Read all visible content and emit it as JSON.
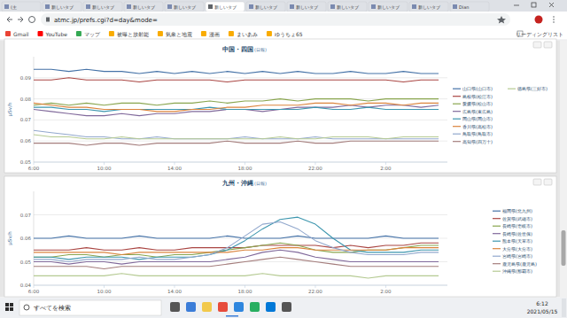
{
  "browser": {
    "tabs": [
      "(主",
      "新しいタブ",
      "新しいタブ",
      "新しいタブ",
      "新しいタブ",
      "新しいタブ",
      "新しいタブ",
      "新しいタブ",
      "新しいタブ",
      "新しいタブ",
      "新しいタブ",
      "Dian"
    ],
    "url": "atmc.jp/prefs.cgi?d=day&mode=",
    "bookmarks": [
      "Gmail",
      "YouTube",
      "マップ",
      "被曝と放射能",
      "気象と地震",
      "漫画",
      "まいあみ",
      "ゆうちょ65"
    ],
    "reading_list": "リーディングリスト"
  },
  "chart_data": [
    {
      "type": "line",
      "title": "中国・四国",
      "subtitle": "(日報)",
      "ylabel": "μSv/h",
      "grid": true,
      "legend": "right",
      "x": [
        6,
        7,
        8,
        9,
        10,
        11,
        12,
        13,
        14,
        15,
        16,
        17,
        18,
        19,
        20,
        21,
        22,
        23,
        24,
        25,
        26,
        27,
        28,
        29
      ],
      "xlim": [
        6,
        29.5
      ],
      "xticks": [
        {
          "value": 6,
          "label": "6:00"
        },
        {
          "value": 10,
          "label": "10:00"
        },
        {
          "value": 14,
          "label": "14:00"
        },
        {
          "value": 18,
          "label": "18:00"
        },
        {
          "value": 22,
          "label": "22:00"
        },
        {
          "value": 26,
          "label": "2:00"
        }
      ],
      "ylim": [
        0.05,
        0.1
      ],
      "yticks": [
        0.05,
        0.06,
        0.07,
        0.08,
        0.09
      ],
      "series": [
        {
          "name": "山口県(山口市)",
          "color": "#4572a7",
          "values": [
            0.094,
            0.094,
            0.093,
            0.094,
            0.093,
            0.093,
            0.092,
            0.093,
            0.092,
            0.093,
            0.092,
            0.093,
            0.092,
            0.093,
            0.092,
            0.093,
            0.092,
            0.092,
            0.093,
            0.092,
            0.092,
            0.093,
            0.092,
            0.092
          ]
        },
        {
          "name": "島根県(松江市)",
          "color": "#aa4643",
          "values": [
            0.089,
            0.089,
            0.09,
            0.089,
            0.089,
            0.089,
            0.088,
            0.089,
            0.089,
            0.089,
            0.089,
            0.088,
            0.089,
            0.089,
            0.089,
            0.089,
            0.089,
            0.089,
            0.089,
            0.089,
            0.089,
            0.088,
            0.089,
            0.089
          ]
        },
        {
          "name": "愛媛県(松山市)",
          "color": "#89a54e",
          "values": [
            0.077,
            0.078,
            0.077,
            0.078,
            0.077,
            0.078,
            0.078,
            0.077,
            0.078,
            0.078,
            0.079,
            0.078,
            0.079,
            0.079,
            0.08,
            0.079,
            0.08,
            0.08,
            0.08,
            0.079,
            0.08,
            0.08,
            0.08,
            0.08
          ]
        },
        {
          "name": "広島県(東広島)",
          "color": "#80699b",
          "values": [
            0.075,
            0.074,
            0.073,
            0.072,
            0.072,
            0.073,
            0.072,
            0.073,
            0.073,
            0.074,
            0.074,
            0.075,
            0.075,
            0.074,
            0.075,
            0.076,
            0.076,
            0.076,
            0.077,
            0.076,
            0.077,
            0.077,
            0.076,
            0.077
          ]
        },
        {
          "name": "岡山県(岡山市)",
          "color": "#3d96ae",
          "values": [
            0.076,
            0.076,
            0.075,
            0.075,
            0.074,
            0.075,
            0.075,
            0.075,
            0.075,
            0.075,
            0.076,
            0.075,
            0.075,
            0.075,
            0.075,
            0.075,
            0.076,
            0.075,
            0.075,
            0.076,
            0.075,
            0.075,
            0.075,
            0.075
          ]
        },
        {
          "name": "香川県(高松市)",
          "color": "#db843d",
          "values": [
            0.078,
            0.077,
            0.076,
            0.076,
            0.075,
            0.075,
            0.075,
            0.074,
            0.074,
            0.075,
            0.075,
            0.076,
            0.076,
            0.077,
            0.077,
            0.077,
            0.078,
            0.078,
            0.077,
            0.078,
            0.078,
            0.077,
            0.078,
            0.078
          ]
        },
        {
          "name": "鳥取県(鳥取市)",
          "color": "#92a8cd",
          "values": [
            0.065,
            0.064,
            0.063,
            0.062,
            0.062,
            0.061,
            0.061,
            0.062,
            0.061,
            0.061,
            0.061,
            0.061,
            0.062,
            0.061,
            0.061,
            0.061,
            0.062,
            0.061,
            0.061,
            0.061,
            0.061,
            0.061,
            0.061,
            0.061
          ]
        },
        {
          "name": "高知県(四万十)",
          "color": "#a47d7c",
          "values": [
            0.059,
            0.059,
            0.059,
            0.058,
            0.059,
            0.059,
            0.058,
            0.059,
            0.059,
            0.059,
            0.059,
            0.06,
            0.059,
            0.059,
            0.059,
            0.06,
            0.059,
            0.059,
            0.06,
            0.06,
            0.06,
            0.06,
            0.06,
            0.06
          ]
        },
        {
          "name": "徳島県(三好市)",
          "color": "#b5ca92",
          "values": [
            0.063,
            0.062,
            0.062,
            0.061,
            0.061,
            0.062,
            0.061,
            0.061,
            0.061,
            0.061,
            0.061,
            0.061,
            0.061,
            0.061,
            0.062,
            0.061,
            0.061,
            0.062,
            0.062,
            0.062,
            0.061,
            0.062,
            0.062,
            0.062
          ]
        }
      ]
    },
    {
      "type": "line",
      "title": "九州・沖縄",
      "subtitle": "(日報)",
      "ylabel": "μSv/h",
      "grid": true,
      "legend": "right",
      "x": [
        6,
        7,
        8,
        9,
        10,
        11,
        12,
        13,
        14,
        15,
        16,
        17,
        18,
        19,
        20,
        21,
        22,
        23,
        24,
        25,
        26,
        27,
        28,
        29
      ],
      "xlim": [
        6,
        29.5
      ],
      "xticks": [
        {
          "value": 6,
          "label": "6:00"
        },
        {
          "value": 10,
          "label": "10:00"
        },
        {
          "value": 14,
          "label": "14:00"
        },
        {
          "value": 18,
          "label": "18:00"
        },
        {
          "value": 22,
          "label": "22:00"
        },
        {
          "value": 26,
          "label": "2:00"
        }
      ],
      "ylim": [
        0.04,
        0.08
      ],
      "yticks": [
        0.04,
        0.05,
        0.06,
        0.07
      ],
      "series": [
        {
          "name": "福岡県(北九州)",
          "color": "#4572a7",
          "values": [
            0.06,
            0.06,
            0.061,
            0.06,
            0.06,
            0.06,
            0.061,
            0.06,
            0.06,
            0.06,
            0.06,
            0.061,
            0.06,
            0.06,
            0.06,
            0.061,
            0.06,
            0.06,
            0.06,
            0.06,
            0.061,
            0.06,
            0.06,
            0.06
          ]
        },
        {
          "name": "佐賀県(武雄市)",
          "color": "#aa4643",
          "values": [
            0.055,
            0.055,
            0.055,
            0.056,
            0.055,
            0.055,
            0.056,
            0.055,
            0.055,
            0.056,
            0.056,
            0.056,
            0.056,
            0.057,
            0.057,
            0.057,
            0.057,
            0.056,
            0.057,
            0.056,
            0.057,
            0.057,
            0.058,
            0.058
          ]
        },
        {
          "name": "長崎県(壱岐市)",
          "color": "#89a54e",
          "values": [
            0.052,
            0.052,
            0.053,
            0.053,
            0.052,
            0.053,
            0.053,
            0.052,
            0.053,
            0.053,
            0.054,
            0.055,
            0.056,
            0.057,
            0.058,
            0.057,
            0.055,
            0.054,
            0.054,
            0.055,
            0.055,
            0.056,
            0.057,
            0.057
          ]
        },
        {
          "name": "長崎県(佐世保)",
          "color": "#80699b",
          "values": [
            0.05,
            0.05,
            0.049,
            0.05,
            0.05,
            0.049,
            0.05,
            0.05,
            0.05,
            0.05,
            0.05,
            0.051,
            0.052,
            0.054,
            0.055,
            0.054,
            0.052,
            0.051,
            0.05,
            0.05,
            0.05,
            0.05,
            0.05,
            0.05
          ]
        },
        {
          "name": "熊本県(天草市)",
          "color": "#3d96ae",
          "values": [
            0.052,
            0.052,
            0.051,
            0.052,
            0.052,
            0.052,
            0.051,
            0.052,
            0.052,
            0.052,
            0.053,
            0.055,
            0.059,
            0.064,
            0.068,
            0.069,
            0.066,
            0.06,
            0.055,
            0.054,
            0.054,
            0.054,
            0.055,
            0.055
          ]
        },
        {
          "name": "大分県(大分市)",
          "color": "#db843d",
          "values": [
            0.054,
            0.054,
            0.054,
            0.054,
            0.054,
            0.053,
            0.054,
            0.054,
            0.054,
            0.054,
            0.054,
            0.054,
            0.055,
            0.055,
            0.056,
            0.056,
            0.055,
            0.055,
            0.055,
            0.055,
            0.055,
            0.056,
            0.056,
            0.056
          ]
        },
        {
          "name": "宮崎県(宮崎市)",
          "color": "#92a8cd",
          "values": [
            0.051,
            0.051,
            0.05,
            0.051,
            0.051,
            0.051,
            0.052,
            0.051,
            0.051,
            0.052,
            0.053,
            0.056,
            0.061,
            0.066,
            0.067,
            0.064,
            0.059,
            0.056,
            0.054,
            0.053,
            0.053,
            0.053,
            0.054,
            0.054
          ]
        },
        {
          "name": "鹿児島県(鹿児島)",
          "color": "#a47d7c",
          "values": [
            0.048,
            0.048,
            0.048,
            0.048,
            0.047,
            0.048,
            0.048,
            0.048,
            0.048,
            0.048,
            0.048,
            0.049,
            0.05,
            0.051,
            0.052,
            0.051,
            0.05,
            0.049,
            0.048,
            0.048,
            0.048,
            0.048,
            0.048,
            0.048
          ]
        },
        {
          "name": "沖縄県(那覇市)",
          "color": "#b5ca92",
          "values": [
            0.044,
            0.044,
            0.044,
            0.044,
            0.044,
            0.045,
            0.044,
            0.044,
            0.044,
            0.044,
            0.044,
            0.044,
            0.044,
            0.045,
            0.044,
            0.044,
            0.044,
            0.044,
            0.044,
            0.043,
            0.044,
            0.044,
            0.044,
            0.044
          ]
        }
      ]
    }
  ],
  "taskbar": {
    "search": "すべてを検索",
    "time": "6:12",
    "date": "2021/05/15"
  }
}
